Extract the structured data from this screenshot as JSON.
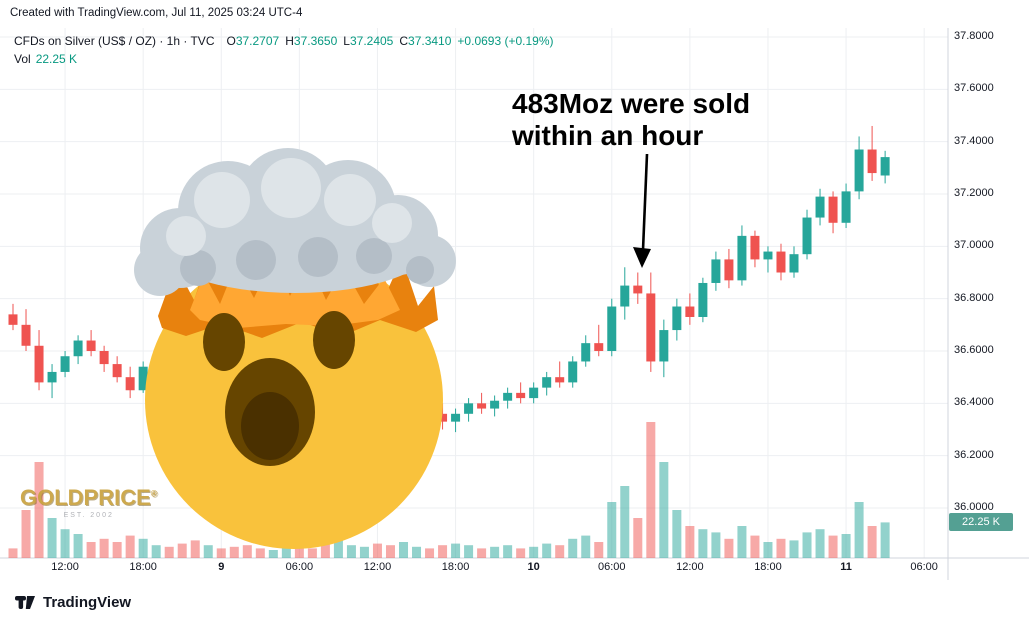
{
  "header": {
    "created_with": "Created with TradingView.com, Jul 11, 2025 03:24 UTC-4"
  },
  "legend": {
    "symbol": "CFDs on Silver (US$ / OZ) · 1h · TVC",
    "ohlc": [
      {
        "k": "O",
        "v": "37.2707"
      },
      {
        "k": "H",
        "v": "37.3650"
      },
      {
        "k": "L",
        "v": "37.2405"
      },
      {
        "k": "C",
        "v": "37.3410"
      }
    ],
    "change": "+0.0693 (+0.19%)",
    "vol_label": "Vol",
    "vol_value": "22.25 K"
  },
  "annotation": {
    "line1": "483Moz were sold",
    "line2": "within an hour"
  },
  "watermark": {
    "name": "GOLDPRICE",
    "reg": "®",
    "est": "EST. 2002"
  },
  "footer": {
    "brand": "TradingView"
  },
  "price_axis": {
    "volume_badge": "22.25 K",
    "labels": [
      {
        "label": "37.8000",
        "price": 37.8
      },
      {
        "label": "37.6000",
        "price": 37.6
      },
      {
        "label": "37.4000",
        "price": 37.4
      },
      {
        "label": "37.2000",
        "price": 37.2
      },
      {
        "label": "37.0000",
        "price": 37.0
      },
      {
        "label": "36.8000",
        "price": 36.8
      },
      {
        "label": "36.6000",
        "price": 36.6
      },
      {
        "label": "36.4000",
        "price": 36.4
      },
      {
        "label": "36.2000",
        "price": 36.2
      },
      {
        "label": "36.0000",
        "price": 36.0
      }
    ]
  },
  "time_axis": {
    "ticks": [
      {
        "label": "12:00",
        "index": 4,
        "bold": false
      },
      {
        "label": "18:00",
        "index": 10,
        "bold": false
      },
      {
        "label": "9",
        "index": 16,
        "bold": true
      },
      {
        "label": "06:00",
        "index": 22,
        "bold": false
      },
      {
        "label": "12:00",
        "index": 28,
        "bold": false
      },
      {
        "label": "18:00",
        "index": 34,
        "bold": false
      },
      {
        "label": "10",
        "index": 40,
        "bold": true
      },
      {
        "label": "06:00",
        "index": 46,
        "bold": false
      },
      {
        "label": "12:00",
        "index": 52,
        "bold": false
      },
      {
        "label": "18:00",
        "index": 58,
        "bold": false
      },
      {
        "label": "11",
        "index": 64,
        "bold": true
      },
      {
        "label": "06:00",
        "index": 70,
        "bold": false
      }
    ]
  },
  "colors": {
    "up": "#26a69a",
    "down": "#ef5350",
    "vol_up": "rgba(38,166,154,0.5)",
    "vol_down": "rgba(239,83,80,0.5)",
    "grid": "#edeff2",
    "axis_line": "#d1d4dc",
    "text": "#131722",
    "ohlc_value": "#089981",
    "volume_badge_bg": "#54a093",
    "annotation_text": "#000000",
    "watermark_gold": "#C9A23F"
  },
  "chart_data": {
    "type": "candlestick+volume",
    "title": "CFDs on Silver (US$ / OZ) · 1h · TVC",
    "timeframe": "1h",
    "ylim": [
      36.0,
      37.8
    ],
    "grid": true,
    "last_ohlc": {
      "open": 37.2707,
      "high": 37.365,
      "low": 37.2405,
      "close": 37.341,
      "change": "+0.0693 (+0.19%)"
    },
    "last_volume_k": 22.25,
    "annotation_target_time": "Jul 10 09:00",
    "candles": {
      "columns": [
        "time",
        "open",
        "high",
        "low",
        "close",
        "volume_k"
      ],
      "rows": [
        [
          "Jul 8 08:00",
          36.74,
          36.78,
          36.68,
          36.7,
          6
        ],
        [
          "Jul 8 09:00",
          36.7,
          36.76,
          36.6,
          36.62,
          30
        ],
        [
          "Jul 8 10:00",
          36.62,
          36.68,
          36.45,
          36.48,
          60
        ],
        [
          "Jul 8 11:00",
          36.48,
          36.55,
          36.42,
          36.52,
          25
        ],
        [
          "Jul 8 12:00",
          36.52,
          36.6,
          36.5,
          36.58,
          18
        ],
        [
          "Jul 8 13:00",
          36.58,
          36.66,
          36.55,
          36.64,
          15
        ],
        [
          "Jul 8 14:00",
          36.64,
          36.68,
          36.58,
          36.6,
          10
        ],
        [
          "Jul 8 15:00",
          36.6,
          36.62,
          36.52,
          36.55,
          12
        ],
        [
          "Jul 8 16:00",
          36.55,
          36.58,
          36.48,
          36.5,
          10
        ],
        [
          "Jul 8 17:00",
          36.5,
          36.54,
          36.42,
          36.45,
          14
        ],
        [
          "Jul 8 18:00",
          36.45,
          36.56,
          36.44,
          36.54,
          12
        ],
        [
          "Jul 8 19:00",
          36.54,
          36.6,
          36.5,
          36.57,
          8
        ],
        [
          "Jul 8 20:00",
          36.57,
          36.62,
          36.52,
          36.55,
          7
        ],
        [
          "Jul 8 21:00",
          36.55,
          36.58,
          36.45,
          36.48,
          9
        ],
        [
          "Jul 8 22:00",
          36.48,
          36.52,
          36.4,
          36.44,
          11
        ],
        [
          "Jul 8 23:00",
          36.44,
          36.5,
          36.4,
          36.47,
          8
        ],
        [
          "Jul 9 00:00",
          36.47,
          36.5,
          36.4,
          36.42,
          6
        ],
        [
          "Jul 9 01:00",
          36.42,
          36.46,
          36.36,
          36.38,
          7
        ],
        [
          "Jul 9 02:00",
          36.38,
          36.42,
          36.32,
          36.35,
          8
        ],
        [
          "Jul 9 03:00",
          36.35,
          36.4,
          36.3,
          36.33,
          6
        ],
        [
          "Jul 9 04:00",
          36.33,
          36.38,
          36.28,
          36.36,
          5
        ],
        [
          "Jul 9 05:00",
          36.36,
          36.44,
          36.34,
          36.42,
          9
        ],
        [
          "Jul 9 06:00",
          36.42,
          36.46,
          36.36,
          36.39,
          7
        ],
        [
          "Jul 9 07:00",
          36.39,
          36.42,
          36.32,
          36.34,
          6
        ],
        [
          "Jul 9 08:00",
          36.34,
          36.36,
          36.24,
          36.27,
          40
        ],
        [
          "Jul 9 09:00",
          36.27,
          36.33,
          36.23,
          36.31,
          12
        ],
        [
          "Jul 9 10:00",
          36.31,
          36.36,
          36.28,
          36.33,
          8
        ],
        [
          "Jul 9 11:00",
          36.33,
          36.38,
          36.3,
          36.36,
          7
        ],
        [
          "Jul 9 12:00",
          36.36,
          36.4,
          36.32,
          36.34,
          9
        ],
        [
          "Jul 9 13:00",
          36.34,
          36.37,
          36.28,
          36.3,
          8
        ],
        [
          "Jul 9 14:00",
          36.3,
          36.36,
          36.27,
          36.34,
          10
        ],
        [
          "Jul 9 15:00",
          36.34,
          36.4,
          36.31,
          36.38,
          7
        ],
        [
          "Jul 9 16:00",
          36.38,
          36.42,
          36.34,
          36.36,
          6
        ],
        [
          "Jul 9 17:00",
          36.36,
          36.4,
          36.3,
          36.33,
          8
        ],
        [
          "Jul 9 18:00",
          36.33,
          36.38,
          36.29,
          36.36,
          9
        ],
        [
          "Jul 9 19:00",
          36.36,
          36.42,
          36.33,
          36.4,
          8
        ],
        [
          "Jul 9 20:00",
          36.4,
          36.44,
          36.36,
          36.38,
          6
        ],
        [
          "Jul 9 21:00",
          36.38,
          36.43,
          36.35,
          36.41,
          7
        ],
        [
          "Jul 9 22:00",
          36.41,
          36.46,
          36.38,
          36.44,
          8
        ],
        [
          "Jul 9 23:00",
          36.44,
          36.48,
          36.4,
          36.42,
          6
        ],
        [
          "Jul 10 00:00",
          36.42,
          36.48,
          36.4,
          36.46,
          7
        ],
        [
          "Jul 10 01:00",
          36.46,
          36.52,
          36.43,
          36.5,
          9
        ],
        [
          "Jul 10 02:00",
          36.5,
          36.56,
          36.46,
          36.48,
          8
        ],
        [
          "Jul 10 03:00",
          36.48,
          36.58,
          36.46,
          36.56,
          12
        ],
        [
          "Jul 10 04:00",
          36.56,
          36.66,
          36.54,
          36.63,
          14
        ],
        [
          "Jul 10 05:00",
          36.63,
          36.7,
          36.58,
          36.6,
          10
        ],
        [
          "Jul 10 06:00",
          36.6,
          36.8,
          36.58,
          36.77,
          35
        ],
        [
          "Jul 10 07:00",
          36.77,
          36.92,
          36.72,
          36.85,
          45
        ],
        [
          "Jul 10 08:00",
          36.85,
          36.9,
          36.78,
          36.82,
          25
        ],
        [
          "Jul 10 09:00",
          36.82,
          36.9,
          36.52,
          36.56,
          85
        ],
        [
          "Jul 10 10:00",
          36.56,
          36.72,
          36.5,
          36.68,
          60
        ],
        [
          "Jul 10 11:00",
          36.68,
          36.8,
          36.64,
          36.77,
          30
        ],
        [
          "Jul 10 12:00",
          36.77,
          36.82,
          36.7,
          36.73,
          20
        ],
        [
          "Jul 10 13:00",
          36.73,
          36.88,
          36.71,
          36.86,
          18
        ],
        [
          "Jul 10 14:00",
          36.86,
          36.98,
          36.83,
          36.95,
          16
        ],
        [
          "Jul 10 15:00",
          36.95,
          36.99,
          36.84,
          36.87,
          12
        ],
        [
          "Jul 10 16:00",
          36.87,
          37.08,
          36.85,
          37.04,
          20
        ],
        [
          "Jul 10 17:00",
          37.04,
          37.06,
          36.92,
          36.95,
          14
        ],
        [
          "Jul 10 18:00",
          36.95,
          37.0,
          36.9,
          36.98,
          10
        ],
        [
          "Jul 10 19:00",
          36.98,
          37.01,
          36.87,
          36.9,
          12
        ],
        [
          "Jul 10 20:00",
          36.9,
          37.0,
          36.88,
          36.97,
          11
        ],
        [
          "Jul 10 21:00",
          36.97,
          37.14,
          36.95,
          37.11,
          16
        ],
        [
          "Jul 10 22:00",
          37.11,
          37.22,
          37.08,
          37.19,
          18
        ],
        [
          "Jul 10 23:00",
          37.19,
          37.21,
          37.05,
          37.09,
          14
        ],
        [
          "Jul 11 00:00",
          37.09,
          37.24,
          37.07,
          37.21,
          15
        ],
        [
          "Jul 11 01:00",
          37.21,
          37.42,
          37.18,
          37.37,
          35
        ],
        [
          "Jul 11 02:00",
          37.37,
          37.46,
          37.25,
          37.28,
          20
        ],
        [
          "Jul 11 03:00",
          37.2707,
          37.365,
          37.2405,
          37.341,
          22.25
        ]
      ]
    }
  }
}
